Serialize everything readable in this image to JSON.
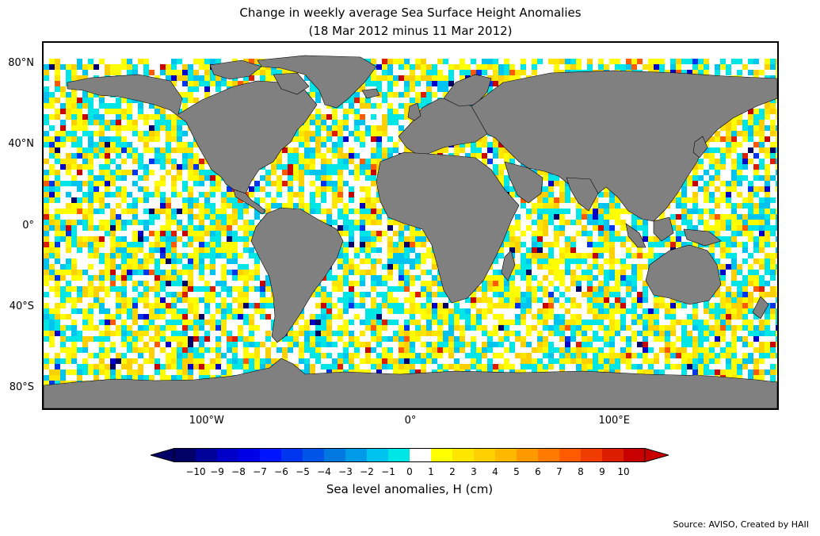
{
  "title_line1": "Change in weekly average Sea Surface Height Anomalies",
  "title_line2": "(18 Mar 2012 minus 11 Mar 2012)",
  "lat_labels": [
    {
      "label": "80°N",
      "lat": 80
    },
    {
      "label": "40°N",
      "lat": 40
    },
    {
      "label": "0°",
      "lat": 0
    },
    {
      "label": "40°S",
      "lat": -40
    },
    {
      "label": "80°S",
      "lat": -80
    }
  ],
  "lon_labels": [
    {
      "label": "100°W",
      "lon": -100
    },
    {
      "label": "0°",
      "lon": 0
    },
    {
      "label": "100°E",
      "lon": 100
    }
  ],
  "map": {
    "lon_range": [
      -180,
      180
    ],
    "lat_range": [
      -90,
      90
    ],
    "land_color": "#808080",
    "no_change_color": "#ffffff"
  },
  "colorbar": {
    "label": "Sea level anomalies, H (cm)",
    "ticks": [
      "−10",
      "−9",
      "−8",
      "−7",
      "−6",
      "−5",
      "−4",
      "−3",
      "−2",
      "−1",
      "0",
      "1",
      "2",
      "3",
      "4",
      "5",
      "6",
      "7",
      "8",
      "9",
      "10"
    ],
    "colors": [
      "#000066",
      "#00009a",
      "#0000c8",
      "#0000e6",
      "#0015ff",
      "#0035f0",
      "#0055e8",
      "#0078e0",
      "#009ae6",
      "#00c3f0",
      "#00e6e6",
      "#ffffff",
      "#ffff00",
      "#ffe600",
      "#ffd000",
      "#ffb800",
      "#ff9900",
      "#ff7a00",
      "#ff5a00",
      "#f03c00",
      "#dc1e00",
      "#c80000"
    ],
    "under_color": "#000066",
    "over_color": "#c80000"
  },
  "source": "Source: AVISO, Created by HAII"
}
